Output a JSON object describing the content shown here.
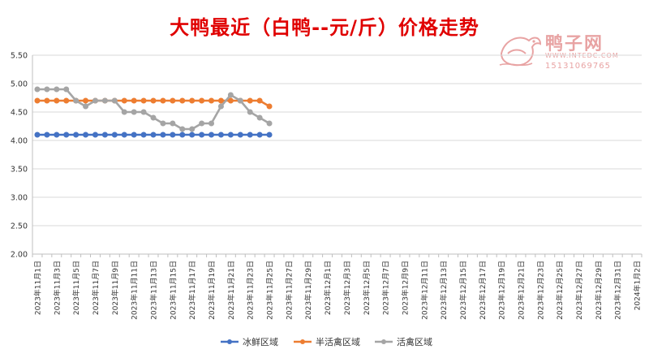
{
  "chart_data": {
    "type": "line",
    "title": "大鸭最近（白鸭--元/斤）价格走势",
    "xlabel": "",
    "ylabel": "",
    "ylim": [
      2.0,
      5.5
    ],
    "yticks": [
      "2.00",
      "2.50",
      "3.00",
      "3.50",
      "4.00",
      "4.50",
      "5.00",
      "5.50"
    ],
    "grid": true,
    "legend_position": "bottom",
    "x_tick_labels": [
      "2023年11月1日",
      "2023年11月3日",
      "2023年11月5日",
      "2023年11月7日",
      "2023年11月9日",
      "2023年11月11日",
      "2023年11月13日",
      "2023年11月15日",
      "2023年11月17日",
      "2023年11月19日",
      "2023年11月21日",
      "2023年11月23日",
      "2023年11月25日",
      "2023年11月27日",
      "2023年11月29日",
      "2023年12月1日",
      "2023年12月3日",
      "2023年12月5日",
      "2023年12月7日",
      "2023年12月9日",
      "2023年12月11日",
      "2023年12月13日",
      "2023年12月15日",
      "2023年12月17日",
      "2023年12月19日",
      "2023年12月21日",
      "2023年12月23日",
      "2023年12月25日",
      "2023年12月27日",
      "2023年12月29日",
      "2023年12月31日",
      "2024年1月2日"
    ],
    "x_category_count": 63,
    "series": [
      {
        "name": "冰鲜区域",
        "color": "#4472c4",
        "values": [
          4.1,
          4.1,
          4.1,
          4.1,
          4.1,
          4.1,
          4.1,
          4.1,
          4.1,
          4.1,
          4.1,
          4.1,
          4.1,
          4.1,
          4.1,
          4.1,
          4.1,
          4.1,
          4.1,
          4.1,
          4.1,
          4.1,
          4.1,
          4.1,
          4.1
        ]
      },
      {
        "name": "半活禽区域",
        "color": "#ed7d31",
        "values": [
          4.7,
          4.7,
          4.7,
          4.7,
          4.7,
          4.7,
          4.7,
          4.7,
          4.7,
          4.7,
          4.7,
          4.7,
          4.7,
          4.7,
          4.7,
          4.7,
          4.7,
          4.7,
          4.7,
          4.7,
          4.7,
          4.7,
          4.7,
          4.7,
          4.6
        ]
      },
      {
        "name": "活禽区域",
        "color": "#a5a5a5",
        "values": [
          4.9,
          4.9,
          4.9,
          4.9,
          4.7,
          4.6,
          4.7,
          4.7,
          4.7,
          4.5,
          4.5,
          4.5,
          4.4,
          4.3,
          4.3,
          4.2,
          4.2,
          4.3,
          4.3,
          4.6,
          4.8,
          4.7,
          4.5,
          4.4,
          4.3
        ]
      }
    ]
  },
  "watermark": {
    "brand": "鸭子网",
    "url": "WWW.INTEDC.COM",
    "phone": "15131069765",
    "color": "#e8a3a3"
  }
}
